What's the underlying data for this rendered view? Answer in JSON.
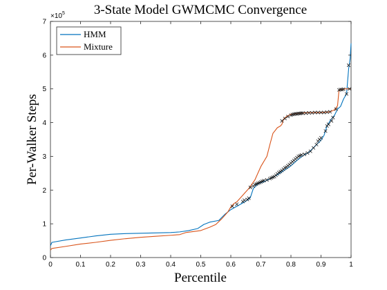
{
  "chart_data": {
    "type": "line",
    "title": "3-State Model GWMCMC Convergence",
    "xlabel": "Percentile",
    "ylabel": "Per-Walker Steps",
    "y_exponent_base": "×10",
    "y_exponent_power": "5",
    "xlim": [
      0,
      1
    ],
    "ylim": [
      0,
      7
    ],
    "x_ticks": [
      0,
      0.1,
      0.2,
      0.3,
      0.4,
      0.5,
      0.6,
      0.7,
      0.8,
      0.9,
      1
    ],
    "x_tick_labels": [
      "0",
      "0.1",
      "0.2",
      "0.3",
      "0.4",
      "0.5",
      "0.6",
      "0.7",
      "0.8",
      "0.9",
      "1"
    ],
    "y_ticks": [
      0,
      1,
      2,
      3,
      4,
      5,
      6,
      7
    ],
    "y_tick_labels": [
      "0",
      "1",
      "2",
      "3",
      "4",
      "5",
      "6",
      "7"
    ],
    "grid": false,
    "legend_position": "top-left",
    "series": [
      {
        "name": "HMM",
        "color": "#0072BD",
        "points": [
          [
            0,
            0.35
          ],
          [
            0.005,
            0.45
          ],
          [
            0.05,
            0.52
          ],
          [
            0.1,
            0.58
          ],
          [
            0.15,
            0.64
          ],
          [
            0.2,
            0.69
          ],
          [
            0.25,
            0.71
          ],
          [
            0.3,
            0.72
          ],
          [
            0.35,
            0.73
          ],
          [
            0.4,
            0.74
          ],
          [
            0.43,
            0.76
          ],
          [
            0.46,
            0.8
          ],
          [
            0.49,
            0.86
          ],
          [
            0.51,
            0.98
          ],
          [
            0.53,
            1.05
          ],
          [
            0.56,
            1.1
          ],
          [
            0.58,
            1.28
          ],
          [
            0.6,
            1.42
          ],
          [
            0.62,
            1.52
          ],
          [
            0.64,
            1.62
          ],
          [
            0.655,
            1.7
          ],
          [
            0.665,
            1.78
          ],
          [
            0.675,
            2.05
          ],
          [
            0.69,
            2.18
          ],
          [
            0.71,
            2.25
          ],
          [
            0.73,
            2.33
          ],
          [
            0.76,
            2.48
          ],
          [
            0.78,
            2.6
          ],
          [
            0.8,
            2.72
          ],
          [
            0.82,
            2.88
          ],
          [
            0.84,
            3.02
          ],
          [
            0.86,
            3.12
          ],
          [
            0.88,
            3.3
          ],
          [
            0.9,
            3.48
          ],
          [
            0.91,
            3.62
          ],
          [
            0.92,
            3.9
          ],
          [
            0.93,
            4.05
          ],
          [
            0.945,
            4.22
          ],
          [
            0.955,
            4.4
          ],
          [
            0.965,
            4.48
          ],
          [
            0.975,
            4.7
          ],
          [
            0.985,
            4.85
          ],
          [
            0.992,
            5.6
          ],
          [
            0.997,
            5.9
          ],
          [
            1,
            6.35
          ]
        ],
        "markers": [
          [
            0.605,
            1.52
          ],
          [
            0.62,
            1.58
          ],
          [
            0.64,
            1.66
          ],
          [
            0.645,
            1.7
          ],
          [
            0.655,
            1.72
          ],
          [
            0.66,
            1.76
          ],
          [
            0.665,
            2.08
          ],
          [
            0.675,
            2.12
          ],
          [
            0.68,
            2.16
          ],
          [
            0.685,
            2.18
          ],
          [
            0.69,
            2.2
          ],
          [
            0.695,
            2.22
          ],
          [
            0.7,
            2.24
          ],
          [
            0.705,
            2.26
          ],
          [
            0.71,
            2.28
          ],
          [
            0.72,
            2.3
          ],
          [
            0.73,
            2.34
          ],
          [
            0.735,
            2.36
          ],
          [
            0.74,
            2.38
          ],
          [
            0.745,
            2.4
          ],
          [
            0.75,
            2.44
          ],
          [
            0.755,
            2.48
          ],
          [
            0.76,
            2.52
          ],
          [
            0.765,
            2.55
          ],
          [
            0.77,
            2.58
          ],
          [
            0.775,
            2.62
          ],
          [
            0.78,
            2.66
          ],
          [
            0.785,
            2.68
          ],
          [
            0.79,
            2.72
          ],
          [
            0.795,
            2.76
          ],
          [
            0.8,
            2.8
          ],
          [
            0.805,
            2.84
          ],
          [
            0.81,
            2.88
          ],
          [
            0.815,
            2.92
          ],
          [
            0.82,
            2.96
          ],
          [
            0.825,
            3.0
          ],
          [
            0.83,
            3.02
          ],
          [
            0.835,
            3.04
          ],
          [
            0.845,
            3.06
          ],
          [
            0.855,
            3.1
          ],
          [
            0.865,
            3.15
          ],
          [
            0.875,
            3.25
          ],
          [
            0.885,
            3.35
          ],
          [
            0.89,
            3.45
          ],
          [
            0.895,
            3.5
          ],
          [
            0.9,
            3.55
          ],
          [
            0.915,
            3.75
          ],
          [
            0.92,
            3.9
          ],
          [
            0.925,
            3.95
          ],
          [
            0.935,
            4.05
          ],
          [
            0.94,
            4.15
          ],
          [
            0.95,
            4.4
          ],
          [
            0.985,
            4.85
          ],
          [
            0.992,
            5.7
          ]
        ]
      },
      {
        "name": "Mixture",
        "color": "#D95319",
        "points": [
          [
            0,
            0.22
          ],
          [
            0.005,
            0.27
          ],
          [
            0.05,
            0.33
          ],
          [
            0.1,
            0.4
          ],
          [
            0.15,
            0.45
          ],
          [
            0.2,
            0.51
          ],
          [
            0.25,
            0.56
          ],
          [
            0.3,
            0.6
          ],
          [
            0.35,
            0.63
          ],
          [
            0.4,
            0.66
          ],
          [
            0.43,
            0.68
          ],
          [
            0.45,
            0.74
          ],
          [
            0.5,
            0.8
          ],
          [
            0.53,
            0.9
          ],
          [
            0.55,
            0.98
          ],
          [
            0.57,
            1.15
          ],
          [
            0.59,
            1.35
          ],
          [
            0.6,
            1.5
          ],
          [
            0.61,
            1.6
          ],
          [
            0.62,
            1.65
          ],
          [
            0.64,
            1.85
          ],
          [
            0.66,
            2.05
          ],
          [
            0.68,
            2.3
          ],
          [
            0.7,
            2.7
          ],
          [
            0.72,
            3.0
          ],
          [
            0.73,
            3.35
          ],
          [
            0.74,
            3.68
          ],
          [
            0.755,
            3.85
          ],
          [
            0.765,
            3.9
          ],
          [
            0.77,
            3.95
          ],
          [
            0.775,
            4.1
          ],
          [
            0.785,
            4.18
          ],
          [
            0.8,
            4.25
          ],
          [
            0.83,
            4.28
          ],
          [
            0.86,
            4.3
          ],
          [
            0.9,
            4.3
          ],
          [
            0.93,
            4.32
          ],
          [
            0.945,
            4.38
          ],
          [
            0.955,
            4.5
          ],
          [
            0.96,
            4.97
          ],
          [
            0.98,
            5.0
          ],
          [
            1,
            5.0
          ]
        ],
        "markers": [
          [
            0.77,
            4.05
          ],
          [
            0.78,
            4.12
          ],
          [
            0.79,
            4.18
          ],
          [
            0.8,
            4.22
          ],
          [
            0.805,
            4.24
          ],
          [
            0.81,
            4.25
          ],
          [
            0.815,
            4.26
          ],
          [
            0.82,
            4.26
          ],
          [
            0.825,
            4.27
          ],
          [
            0.83,
            4.27
          ],
          [
            0.835,
            4.28
          ],
          [
            0.84,
            4.28
          ],
          [
            0.85,
            4.28
          ],
          [
            0.86,
            4.29
          ],
          [
            0.87,
            4.29
          ],
          [
            0.88,
            4.3
          ],
          [
            0.89,
            4.3
          ],
          [
            0.9,
            4.3
          ],
          [
            0.91,
            4.3
          ],
          [
            0.92,
            4.31
          ],
          [
            0.93,
            4.32
          ],
          [
            0.96,
            4.97
          ],
          [
            0.965,
            4.98
          ],
          [
            0.97,
            4.98
          ],
          [
            0.975,
            4.99
          ],
          [
            0.995,
            5.0
          ]
        ]
      }
    ]
  }
}
